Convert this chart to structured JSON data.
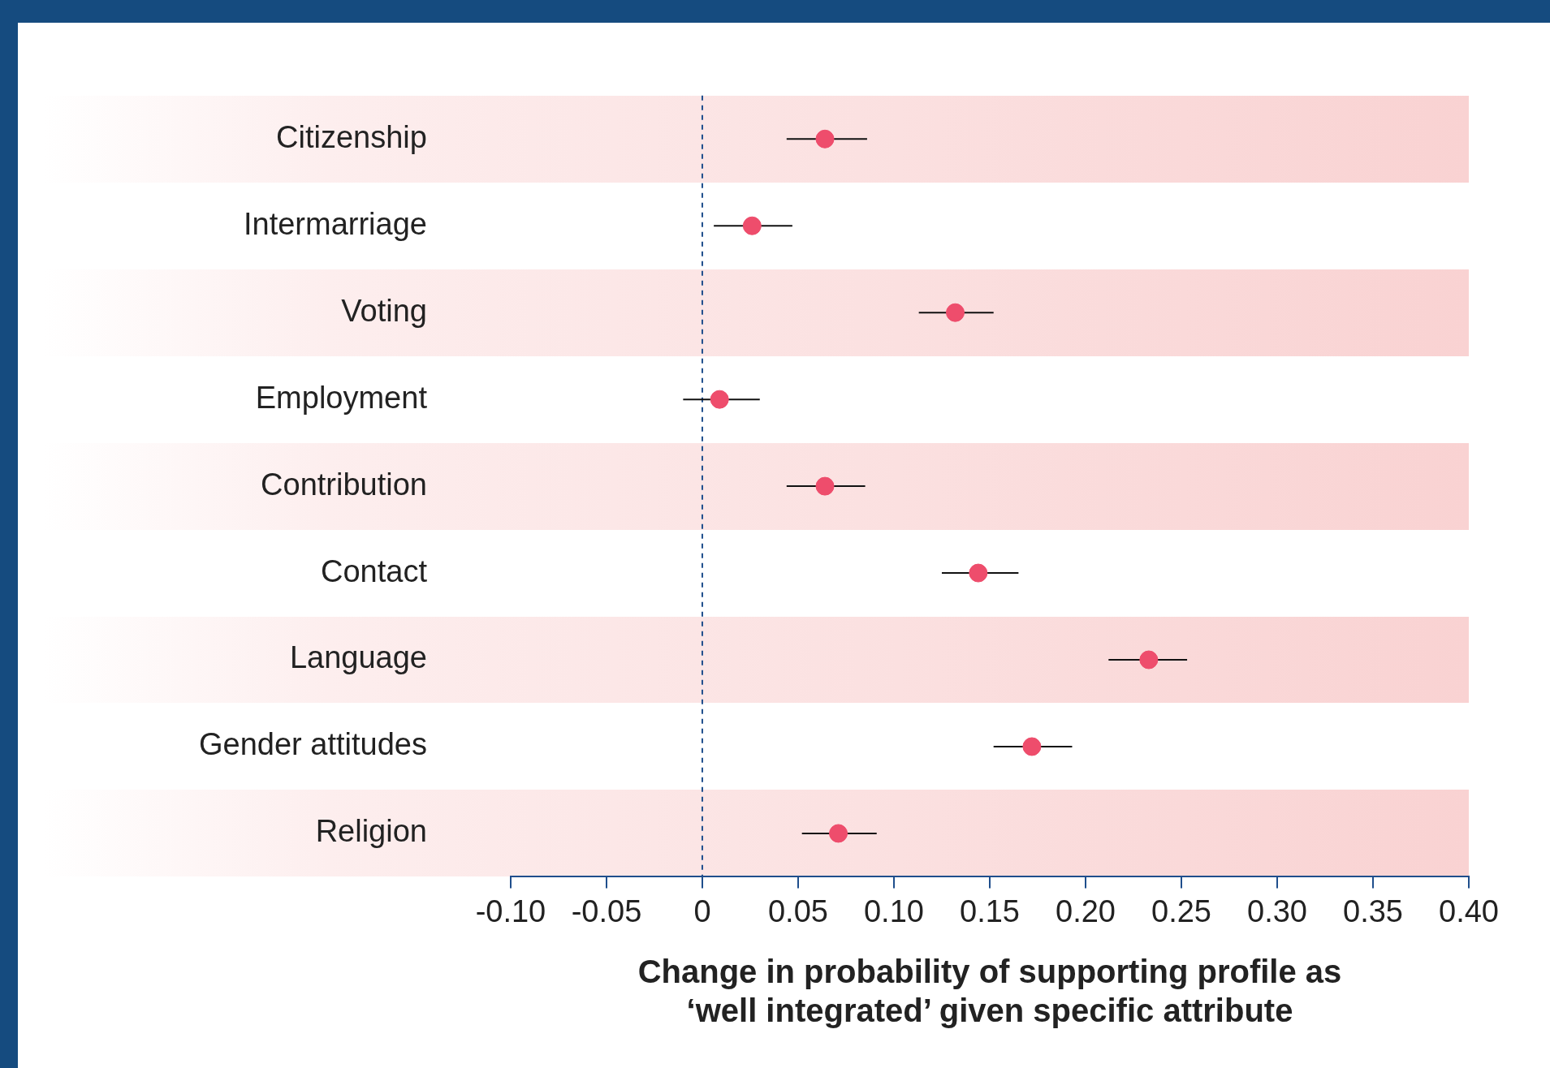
{
  "chart_data": {
    "type": "scatter",
    "orientation": "horizontal",
    "xlabel": "Change in probability of supporting profile as\n‘well integrated’ given specific attribute",
    "categories": [
      "Citizenship",
      "Intermarriage",
      "Voting",
      "Employment",
      "Contribution",
      "Contact",
      "Language",
      "Gender attitudes",
      "Religion"
    ],
    "values": [
      0.064,
      0.026,
      0.132,
      0.009,
      0.064,
      0.144,
      0.233,
      0.172,
      0.071
    ],
    "errors": [
      [
        0.044,
        0.086
      ],
      [
        0.006,
        0.047
      ],
      [
        0.113,
        0.152
      ],
      [
        -0.01,
        0.03
      ],
      [
        0.044,
        0.085
      ],
      [
        0.125,
        0.165
      ],
      [
        0.212,
        0.253
      ],
      [
        0.152,
        0.193
      ],
      [
        0.052,
        0.091
      ]
    ],
    "color": "#ee4d6c",
    "marker": "circle",
    "xlim": [
      -0.1,
      0.4
    ],
    "xticks": [
      {
        "value": -0.1,
        "label": "-0.10"
      },
      {
        "value": -0.05,
        "label": "-0.05"
      },
      0,
      {
        "value": 0.05,
        "label": "0.05"
      },
      {
        "value": 0.1,
        "label": "0.10"
      },
      {
        "value": 0.15,
        "label": "0.15"
      },
      {
        "value": 0.2,
        "label": "0.20"
      },
      {
        "value": 0.25,
        "label": "0.25"
      },
      {
        "value": 0.3,
        "label": "0.30"
      },
      {
        "value": 0.35,
        "label": "0.35"
      },
      {
        "value": 0.4,
        "label": "0.40"
      }
    ],
    "ref_lines": [
      {
        "axis": "x",
        "value": 0,
        "color": "#1f4e8c",
        "line_style": "dashed"
      }
    ],
    "grid": false,
    "legend": false
  }
}
